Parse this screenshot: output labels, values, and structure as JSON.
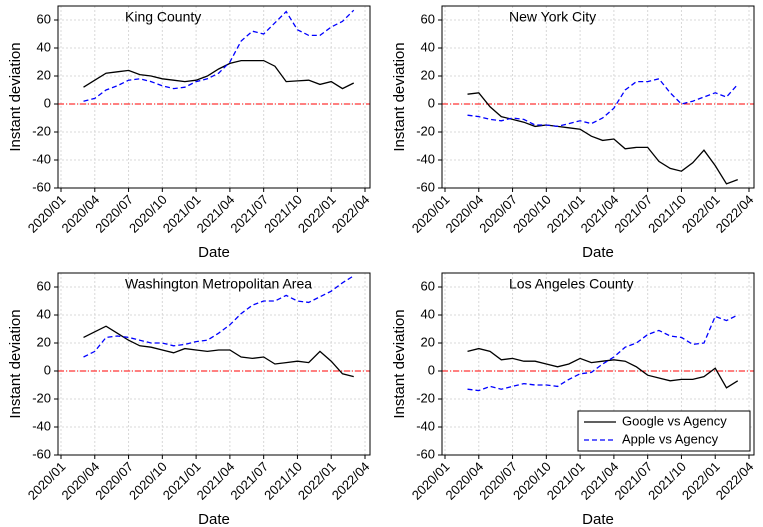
{
  "chart_data": [
    {
      "type": "line",
      "title": "King County",
      "xlabel": "Date",
      "ylabel": "Instant deviation",
      "x": [
        "2020/03",
        "2020/04",
        "2020/05",
        "2020/06",
        "2020/07",
        "2020/08",
        "2020/09",
        "2020/10",
        "2020/11",
        "2020/12",
        "2021/01",
        "2021/02",
        "2021/03",
        "2021/04",
        "2021/05",
        "2021/06",
        "2021/07",
        "2021/08",
        "2021/09",
        "2021/10",
        "2021/11",
        "2021/12",
        "2022/01",
        "2022/02",
        "2022/03"
      ],
      "xlim": [
        "2020/01",
        "2022/04"
      ],
      "xticks": [
        "2020/01",
        "2020/04",
        "2020/07",
        "2020/10",
        "2021/01",
        "2021/04",
        "2021/07",
        "2021/10",
        "2022/01",
        "2022/04"
      ],
      "ylim": [
        -60,
        70
      ],
      "yticks": [
        -60,
        -40,
        -20,
        0,
        20,
        40,
        60
      ],
      "grid": true,
      "hline": {
        "value": 0,
        "color": "#ff0000"
      },
      "series": [
        {
          "color": "#000000",
          "dash": "solid",
          "values": [
            12,
            17,
            22,
            23,
            24,
            21,
            20,
            18,
            17,
            16,
            17,
            20,
            25,
            29,
            31,
            31,
            31,
            27,
            16,
            16.5,
            17,
            14,
            16,
            11,
            15
          ]
        },
        {
          "color": "#0000ff",
          "dash": "dashed",
          "values": [
            2,
            4,
            10,
            13,
            17,
            18,
            16,
            13,
            11,
            12,
            16,
            18,
            22,
            30,
            45,
            52,
            50,
            58,
            66,
            53,
            49,
            49,
            55,
            59,
            67
          ]
        }
      ]
    },
    {
      "type": "line",
      "title": "New York City",
      "xlabel": "Date",
      "ylabel": "Instant deviation",
      "x": [
        "2020/03",
        "2020/04",
        "2020/05",
        "2020/06",
        "2020/07",
        "2020/08",
        "2020/09",
        "2020/10",
        "2020/11",
        "2020/12",
        "2021/01",
        "2021/02",
        "2021/03",
        "2021/04",
        "2021/05",
        "2021/06",
        "2021/07",
        "2021/08",
        "2021/09",
        "2021/10",
        "2021/11",
        "2021/12",
        "2022/01",
        "2022/02",
        "2022/03"
      ],
      "xlim": [
        "2020/01",
        "2022/04"
      ],
      "xticks": [
        "2020/01",
        "2020/04",
        "2020/07",
        "2020/10",
        "2021/01",
        "2021/04",
        "2021/07",
        "2021/10",
        "2022/01",
        "2022/04"
      ],
      "ylim": [
        -60,
        70
      ],
      "yticks": [
        -60,
        -40,
        -20,
        0,
        20,
        40,
        60
      ],
      "grid": true,
      "hline": {
        "value": 0,
        "color": "#ff0000"
      },
      "series": [
        {
          "color": "#000000",
          "dash": "solid",
          "values": [
            7,
            8,
            -2,
            -9,
            -11,
            -13,
            -16,
            -15,
            -16,
            -17,
            -18,
            -23,
            -26,
            -25,
            -32,
            -31,
            -31,
            -41,
            -46,
            -48,
            -42,
            -33,
            -44,
            -57,
            -54
          ]
        },
        {
          "color": "#0000ff",
          "dash": "dashed",
          "values": [
            -8,
            -9,
            -11,
            -12,
            -10,
            -11,
            -15,
            -15,
            -16,
            -14,
            -12,
            -14,
            -10,
            -3,
            10,
            16,
            16,
            18,
            8,
            0,
            2,
            5,
            8,
            5,
            14
          ]
        }
      ]
    },
    {
      "type": "line",
      "title": "Washington Metropolitan Area",
      "xlabel": "Date",
      "ylabel": "Instant deviation",
      "x": [
        "2020/03",
        "2020/04",
        "2020/05",
        "2020/06",
        "2020/07",
        "2020/08",
        "2020/09",
        "2020/10",
        "2020/11",
        "2020/12",
        "2021/01",
        "2021/02",
        "2021/03",
        "2021/04",
        "2021/05",
        "2021/06",
        "2021/07",
        "2021/08",
        "2021/09",
        "2021/10",
        "2021/11",
        "2021/12",
        "2022/01",
        "2022/02",
        "2022/03"
      ],
      "xlim": [
        "2020/01",
        "2022/04"
      ],
      "xticks": [
        "2020/01",
        "2020/04",
        "2020/07",
        "2020/10",
        "2021/01",
        "2021/04",
        "2021/07",
        "2021/10",
        "2022/01",
        "2022/04"
      ],
      "ylim": [
        -60,
        70
      ],
      "yticks": [
        -60,
        -40,
        -20,
        0,
        20,
        40,
        60
      ],
      "grid": true,
      "hline": {
        "value": 0,
        "color": "#ff0000"
      },
      "series": [
        {
          "color": "#000000",
          "dash": "solid",
          "values": [
            24,
            28,
            32,
            27,
            22,
            18,
            17,
            15,
            13,
            16,
            15,
            14,
            15,
            15,
            10,
            9,
            10,
            5,
            6,
            7,
            6,
            14,
            7,
            -2,
            -4
          ]
        },
        {
          "color": "#0000ff",
          "dash": "dashed",
          "values": [
            10,
            14,
            24,
            25,
            24,
            22,
            20,
            20,
            18,
            19,
            21,
            22,
            27,
            33,
            41,
            47,
            50,
            50,
            54,
            50,
            49,
            53,
            57,
            63,
            68
          ]
        }
      ]
    },
    {
      "type": "line",
      "title": "Los Angeles County",
      "xlabel": "Date",
      "ylabel": "Instant deviation",
      "x": [
        "2020/03",
        "2020/04",
        "2020/05",
        "2020/06",
        "2020/07",
        "2020/08",
        "2020/09",
        "2020/10",
        "2020/11",
        "2020/12",
        "2021/01",
        "2021/02",
        "2021/03",
        "2021/04",
        "2021/05",
        "2021/06",
        "2021/07",
        "2021/08",
        "2021/09",
        "2021/10",
        "2021/11",
        "2021/12",
        "2022/01",
        "2022/02",
        "2022/03"
      ],
      "xlim": [
        "2020/01",
        "2022/04"
      ],
      "xticks": [
        "2020/01",
        "2020/04",
        "2020/07",
        "2020/10",
        "2021/01",
        "2021/04",
        "2021/07",
        "2021/10",
        "2022/01",
        "2022/04"
      ],
      "ylim": [
        -60,
        70
      ],
      "yticks": [
        -60,
        -40,
        -20,
        0,
        20,
        40,
        60
      ],
      "grid": true,
      "hline": {
        "value": 0,
        "color": "#ff0000"
      },
      "legend": "lower right",
      "series": [
        {
          "name": "Google vs Agency",
          "color": "#000000",
          "dash": "solid",
          "values": [
            14,
            16,
            14,
            8,
            9,
            7,
            7,
            5,
            3,
            5,
            9,
            6,
            7,
            8,
            7,
            3,
            -3,
            -5,
            -7,
            -6,
            -6,
            -4,
            2,
            -12,
            -7
          ]
        },
        {
          "name": "Apple vs Agency",
          "color": "#0000ff",
          "dash": "dashed",
          "values": [
            -13,
            -14,
            -11,
            -13,
            -11,
            -9,
            -10,
            -10,
            -11,
            -6,
            -2,
            -1,
            5,
            10,
            17,
            20,
            26,
            29,
            25,
            24,
            19,
            20,
            39,
            36,
            40
          ]
        }
      ]
    }
  ]
}
